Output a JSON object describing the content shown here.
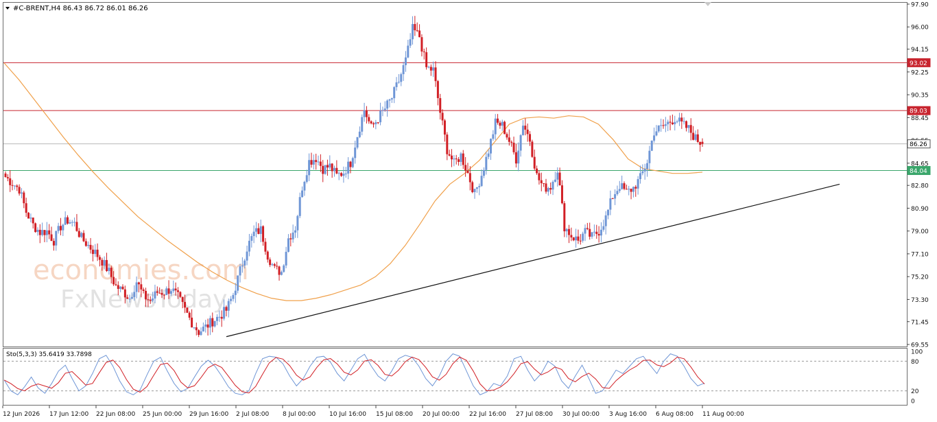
{
  "header": {
    "symbol_line": "#C-BRENT,H4  86.43 86.72 86.01 86.26"
  },
  "indicator": {
    "label": "Sto(5,3,3) 35.6419 33.7898"
  },
  "watermark": {
    "line1": "economies.com",
    "line2": "FxNewsToday"
  },
  "colors": {
    "bull": "#6f96d6",
    "bear": "#d11f25",
    "ma": "#f0a04a",
    "resistance": "#c8252f",
    "support": "#3aa66b",
    "current": "#b9b9b9",
    "trendline": "#111111",
    "stoch_main": "#6f96d6",
    "stoch_signal": "#d11f25"
  },
  "chart_data": {
    "type": "candlestick",
    "symbol": "#C-BRENT",
    "timeframe": "H4",
    "ohlc_last": {
      "open": 86.43,
      "high": 86.72,
      "low": 86.01,
      "close": 86.26
    },
    "y_range": [
      69.55,
      97.9
    ],
    "y_ticks": [
      "97.90",
      "96.00",
      "94.15",
      "92.25",
      "90.35",
      "88.45",
      "86.55",
      "84.65",
      "82.80",
      "80.90",
      "79.00",
      "77.10",
      "75.20",
      "73.30",
      "71.45",
      "69.55"
    ],
    "x_labels": [
      "12 Jun 2026",
      "17 Jun 12:00",
      "22 Jun 08:00",
      "25 Jun 00:00",
      "29 Jun 16:00",
      "2 Jul 08:00",
      "8 Jul 00:00",
      "10 Jul 16:00",
      "15 Jul 08:00",
      "20 Jul 00:00",
      "22 Jul 16:00",
      "27 Jul 08:00",
      "30 Jul 00:00",
      "3 Aug 16:00",
      "6 Aug 08:00",
      "11 Aug 00:00"
    ],
    "close_path": [
      83.5,
      83.0,
      82.5,
      80.6,
      79.5,
      78.9,
      79.0,
      78.2,
      79.4,
      79.9,
      79.6,
      78.4,
      77.8,
      77.2,
      76.5,
      75.6,
      74.4,
      74.0,
      73.4,
      74.8,
      73.6,
      73.2,
      73.9,
      73.9,
      74.2,
      73.5,
      72.4,
      71.4,
      70.6,
      71.0,
      71.5,
      71.9,
      72.4,
      73.7,
      75.7,
      77.6,
      78.8,
      79.1,
      77.0,
      75.8,
      75.6,
      78.4,
      79.3,
      82.7,
      84.8,
      85.1,
      84.2,
      84.4,
      83.6,
      83.9,
      84.7,
      87.0,
      89.1,
      87.6,
      88.4,
      89.2,
      90.1,
      91.5,
      93.2,
      95.8,
      95.2,
      92.6,
      92.4,
      88.9,
      85.8,
      84.6,
      85.3,
      83.8,
      82.1,
      83.7,
      85.7,
      88.0,
      87.8,
      86.5,
      85.0,
      88.0,
      86.6,
      83.6,
      82.6,
      82.7,
      84.2,
      79.4,
      78.6,
      78.2,
      78.9,
      78.5,
      79.0,
      80.1,
      81.9,
      82.8,
      82.2,
      82.6,
      83.4,
      84.8,
      87.3,
      87.6,
      88.0,
      88.4,
      87.9,
      87.5,
      86.7,
      86.26
    ],
    "moving_average": [
      93.0,
      91.6,
      90.0,
      88.4,
      86.8,
      85.3,
      83.9,
      82.6,
      81.4,
      80.2,
      79.2,
      78.2,
      77.3,
      76.4,
      75.6,
      74.9,
      74.3,
      73.8,
      73.4,
      73.2,
      73.2,
      73.4,
      73.7,
      74.1,
      74.5,
      75.2,
      76.3,
      77.8,
      79.6,
      81.5,
      82.9,
      83.8,
      84.9,
      86.4,
      87.9,
      88.4,
      88.5,
      88.4,
      88.6,
      88.5,
      87.9,
      86.6,
      85.0,
      84.2,
      84.0,
      83.8,
      83.8,
      83.9
    ],
    "horizontal_levels": [
      {
        "value": 93.02,
        "label": "93.02",
        "role": "resistance"
      },
      {
        "value": 89.03,
        "label": "89.03",
        "role": "resistance"
      },
      {
        "value": 86.26,
        "label": "86.26",
        "role": "current"
      },
      {
        "value": 84.04,
        "label": "84.04",
        "role": "support"
      }
    ],
    "trendline": {
      "from": [
        "2 Jul 08:00",
        70.2
      ],
      "to": [
        "projected",
        82.9
      ]
    },
    "stochastic": {
      "params": "5,3,3",
      "main": 35.6419,
      "signal": 33.7898,
      "levels": [
        80,
        20
      ],
      "y_ticks": [
        "100",
        "80",
        "20",
        "0"
      ],
      "main_path": [
        42,
        20,
        12,
        28,
        48,
        26,
        15,
        35,
        60,
        72,
        45,
        20,
        30,
        55,
        85,
        92,
        70,
        40,
        18,
        12,
        22,
        52,
        80,
        88,
        60,
        35,
        18,
        25,
        48,
        70,
        82,
        70,
        50,
        28,
        15,
        12,
        20,
        55,
        85,
        90,
        88,
        75,
        50,
        30,
        45,
        70,
        88,
        90,
        78,
        55,
        40,
        62,
        85,
        94,
        70,
        50,
        40,
        60,
        85,
        92,
        88,
        70,
        45,
        30,
        50,
        80,
        95,
        90,
        60,
        30,
        12,
        18,
        35,
        30,
        50,
        85,
        90,
        62,
        40,
        55,
        80,
        70,
        40,
        25,
        50,
        72,
        45,
        15,
        20,
        40,
        62,
        55,
        70,
        85,
        90,
        72,
        55,
        80,
        95,
        90,
        70,
        45,
        30,
        35
      ]
    }
  }
}
